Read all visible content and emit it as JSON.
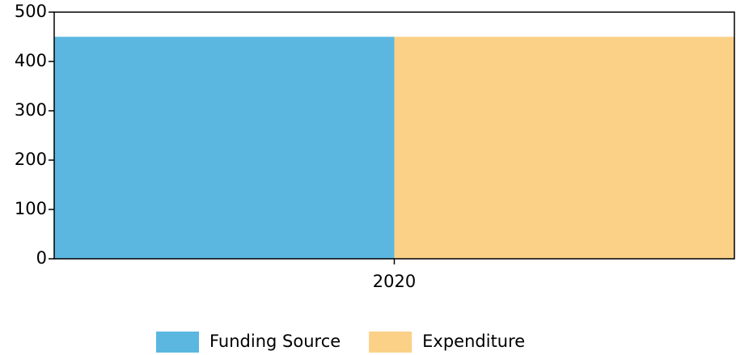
{
  "chart_data": {
    "type": "bar",
    "categories": [
      "2020"
    ],
    "series": [
      {
        "name": "Funding Source",
        "color": "#5bb7e0",
        "values": [
          450
        ]
      },
      {
        "name": "Expenditure",
        "color": "#fbd087",
        "values": [
          450
        ]
      }
    ],
    "ylim": [
      0,
      500
    ],
    "yticks": [
      0,
      100,
      200,
      300,
      400,
      500
    ],
    "legend": "bottom"
  }
}
